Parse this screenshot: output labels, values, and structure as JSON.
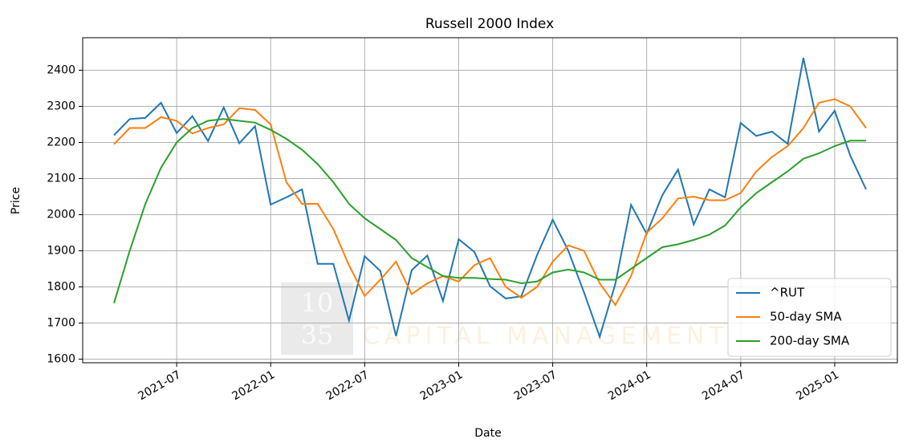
{
  "chart_data": {
    "type": "line",
    "title": "Russell 2000 Index",
    "xlabel": "Date",
    "ylabel": "Price",
    "watermark": {
      "logo": [
        "10",
        "35"
      ],
      "text": "CAPITAL MANAGEMENT"
    },
    "x": [
      "2021-03",
      "2021-04",
      "2021-05",
      "2021-06",
      "2021-07",
      "2021-08",
      "2021-09",
      "2021-10",
      "2021-11",
      "2021-12",
      "2022-01",
      "2022-02",
      "2022-03",
      "2022-04",
      "2022-05",
      "2022-06",
      "2022-07",
      "2022-08",
      "2022-09",
      "2022-10",
      "2022-11",
      "2022-12",
      "2023-01",
      "2023-02",
      "2023-03",
      "2023-04",
      "2023-05",
      "2023-06",
      "2023-07",
      "2023-08",
      "2023-09",
      "2023-10",
      "2023-11",
      "2023-12",
      "2024-01",
      "2024-02",
      "2024-03",
      "2024-04",
      "2024-05",
      "2024-06",
      "2024-07",
      "2024-08",
      "2024-09",
      "2024-10",
      "2024-11",
      "2024-12",
      "2025-01",
      "2025-02",
      "2025-03"
    ],
    "series": [
      {
        "name": "^RUT",
        "color": "#1f77b4",
        "values": [
          2220,
          2265,
          2268,
          2310,
          2226,
          2273,
          2204,
          2297,
          2198,
          2245,
          2028,
          2048,
          2070,
          1864,
          1864,
          1707,
          1885,
          1844,
          1664,
          1846,
          1887,
          1761,
          1932,
          1897,
          1802,
          1768,
          1774,
          1888,
          1986,
          1900,
          1785,
          1662,
          1809,
          2027,
          1947,
          2054,
          2125,
          1973,
          2070,
          2048,
          2254,
          2218,
          2230,
          2196,
          2434,
          2230,
          2288,
          2163,
          2070
        ]
      },
      {
        "name": "50-day SMA",
        "color": "#ff7f0e",
        "values": [
          2195,
          2240,
          2240,
          2270,
          2260,
          2225,
          2240,
          2250,
          2295,
          2290,
          2250,
          2090,
          2030,
          2030,
          1960,
          1860,
          1775,
          1820,
          1870,
          1780,
          1810,
          1830,
          1815,
          1860,
          1880,
          1800,
          1770,
          1800,
          1870,
          1915,
          1900,
          1810,
          1750,
          1830,
          1950,
          1990,
          2045,
          2050,
          2040,
          2040,
          2060,
          2120,
          2160,
          2190,
          2240,
          2310,
          2320,
          2300,
          2240
        ]
      },
      {
        "name": "200-day SMA",
        "color": "#2ca02c",
        "values": [
          1755,
          1900,
          2030,
          2130,
          2200,
          2240,
          2260,
          2265,
          2260,
          2255,
          2235,
          2210,
          2180,
          2140,
          2090,
          2030,
          1990,
          1960,
          1930,
          1880,
          1855,
          1830,
          1825,
          1825,
          1822,
          1820,
          1810,
          1815,
          1840,
          1848,
          1840,
          1820,
          1820,
          1850,
          1880,
          1910,
          1918,
          1930,
          1945,
          1970,
          2020,
          2060,
          2090,
          2120,
          2155,
          2170,
          2190,
          2205,
          2205
        ]
      }
    ],
    "xlim": [
      "2021-01",
      "2025-05"
    ],
    "xticks": [
      "2021-07",
      "2022-01",
      "2022-07",
      "2023-01",
      "2023-07",
      "2024-01",
      "2024-07",
      "2025-01"
    ],
    "ylim": [
      1590,
      2490
    ],
    "yticks": [
      1600,
      1700,
      1800,
      1900,
      2000,
      2100,
      2200,
      2300,
      2400
    ],
    "grid": true,
    "legend": "lower right"
  }
}
